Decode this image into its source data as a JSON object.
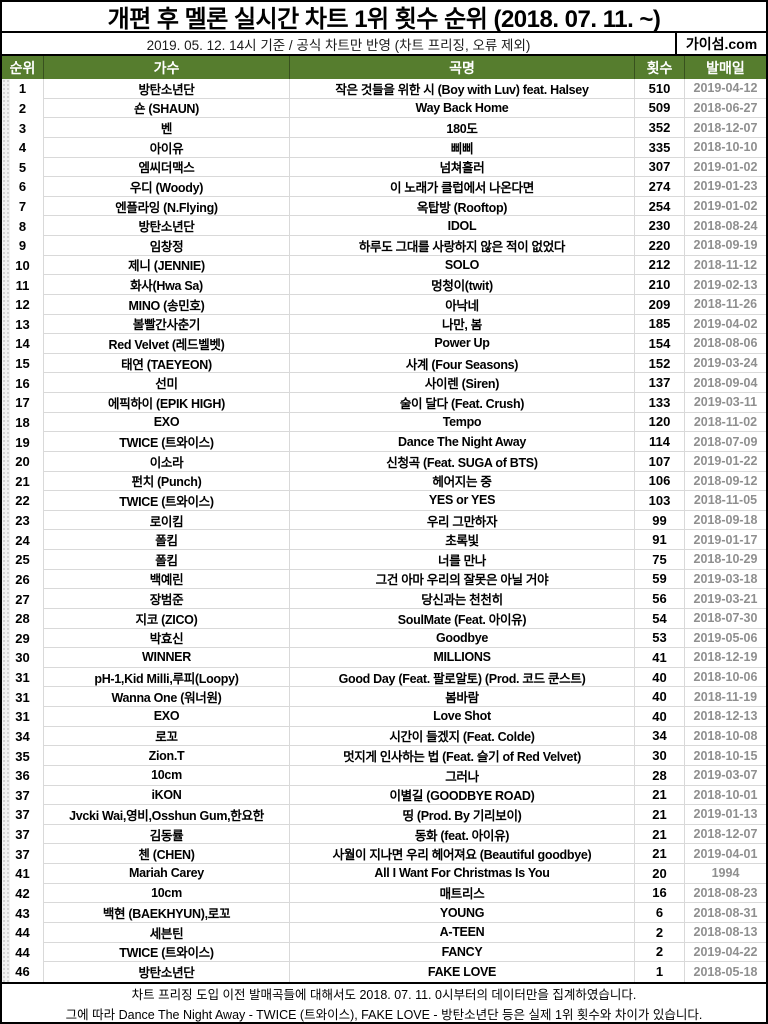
{
  "header": {
    "title": "개편 후 멜론 실시간 차트 1위 횟수 순위 (2018. 07. 11. ~)",
    "subtitle": "2019. 05. 12. 14시 기준 / 공식 차트만 반영 (차트 프리징, 오류 제외)",
    "source_label": "가이섬.com"
  },
  "chart_data": {
    "type": "table",
    "title": "개편 후 멜론 실시간 차트 1위 횟수 순위 (2018. 07. 11. ~)",
    "columns": [
      "순위",
      "가수",
      "곡명",
      "횟수",
      "발매일"
    ],
    "rows": [
      [
        "1",
        "방탄소년단",
        "작은 것들을 위한 시 (Boy with Luv) feat. Halsey",
        "510",
        "2019-04-12"
      ],
      [
        "2",
        "숀 (SHAUN)",
        "Way Back Home",
        "509",
        "2018-06-27"
      ],
      [
        "3",
        "벤",
        "180도",
        "352",
        "2018-12-07"
      ],
      [
        "4",
        "아이유",
        "삐삐",
        "335",
        "2018-10-10"
      ],
      [
        "5",
        "엠씨더맥스",
        "넘쳐흘러",
        "307",
        "2019-01-02"
      ],
      [
        "6",
        "우디 (Woody)",
        "이 노래가 클럽에서 나온다면",
        "274",
        "2019-01-23"
      ],
      [
        "7",
        "엔플라잉 (N.Flying)",
        "옥탑방 (Rooftop)",
        "254",
        "2019-01-02"
      ],
      [
        "8",
        "방탄소년단",
        "IDOL",
        "230",
        "2018-08-24"
      ],
      [
        "9",
        "임창정",
        "하루도 그대를 사랑하지 않은 적이 없었다",
        "220",
        "2018-09-19"
      ],
      [
        "10",
        "제니 (JENNIE)",
        "SOLO",
        "212",
        "2018-11-12"
      ],
      [
        "11",
        "화사(Hwa Sa)",
        "멍청이(twit)",
        "210",
        "2019-02-13"
      ],
      [
        "12",
        "MINO (송민호)",
        "아낙네",
        "209",
        "2018-11-26"
      ],
      [
        "13",
        "볼빨간사춘기",
        "나만, 봄",
        "185",
        "2019-04-02"
      ],
      [
        "14",
        "Red Velvet (레드벨벳)",
        "Power Up",
        "154",
        "2018-08-06"
      ],
      [
        "15",
        "태연 (TAEYEON)",
        "사계 (Four Seasons)",
        "152",
        "2019-03-24"
      ],
      [
        "16",
        "선미",
        "사이렌 (Siren)",
        "137",
        "2018-09-04"
      ],
      [
        "17",
        "에픽하이 (EPIK HIGH)",
        "술이 달다 (Feat. Crush)",
        "133",
        "2019-03-11"
      ],
      [
        "18",
        "EXO",
        "Tempo",
        "120",
        "2018-11-02"
      ],
      [
        "19",
        "TWICE (트와이스)",
        "Dance The Night Away",
        "114",
        "2018-07-09"
      ],
      [
        "20",
        "이소라",
        "신청곡 (Feat. SUGA of BTS)",
        "107",
        "2019-01-22"
      ],
      [
        "21",
        "펀치 (Punch)",
        "헤어지는 중",
        "106",
        "2018-09-12"
      ],
      [
        "22",
        "TWICE (트와이스)",
        "YES or YES",
        "103",
        "2018-11-05"
      ],
      [
        "23",
        "로이킴",
        "우리 그만하자",
        "99",
        "2018-09-18"
      ],
      [
        "24",
        "폴킴",
        "초록빛",
        "91",
        "2019-01-17"
      ],
      [
        "25",
        "폴킴",
        "너를 만나",
        "75",
        "2018-10-29"
      ],
      [
        "26",
        "백예린",
        "그건 아마 우리의 잘못은 아닐 거야",
        "59",
        "2019-03-18"
      ],
      [
        "27",
        "장범준",
        "당신과는 천천히",
        "56",
        "2019-03-21"
      ],
      [
        "28",
        "지코 (ZICO)",
        "SoulMate (Feat. 아이유)",
        "54",
        "2018-07-30"
      ],
      [
        "29",
        "박효신",
        "Goodbye",
        "53",
        "2019-05-06"
      ],
      [
        "30",
        "WINNER",
        "MILLIONS",
        "41",
        "2018-12-19"
      ],
      [
        "31",
        "pH-1,Kid Milli,루피(Loopy)",
        "Good Day (Feat. 팔로알토) (Prod. 코드 쿤스트)",
        "40",
        "2018-10-06"
      ],
      [
        "31",
        "Wanna One (워너원)",
        "봄바람",
        "40",
        "2018-11-19"
      ],
      [
        "31",
        "EXO",
        "Love Shot",
        "40",
        "2018-12-13"
      ],
      [
        "34",
        "로꼬",
        "시간이 들겠지 (Feat. Colde)",
        "34",
        "2018-10-08"
      ],
      [
        "35",
        "Zion.T",
        "멋지게 인사하는 법 (Feat. 슬기 of Red Velvet)",
        "30",
        "2018-10-15"
      ],
      [
        "36",
        "10cm",
        "그러나",
        "28",
        "2019-03-07"
      ],
      [
        "37",
        "iKON",
        "이별길 (GOODBYE ROAD)",
        "21",
        "2018-10-01"
      ],
      [
        "37",
        "Jvcki Wai,영비,Osshun Gum,한요한",
        "띵 (Prod. By 기리보이)",
        "21",
        "2019-01-13"
      ],
      [
        "37",
        "김동률",
        "동화 (feat. 아이유)",
        "21",
        "2018-12-07"
      ],
      [
        "37",
        "첸 (CHEN)",
        "사월이 지나면 우리 헤어져요 (Beautiful goodbye)",
        "21",
        "2019-04-01"
      ],
      [
        "41",
        "Mariah Carey",
        "All I Want For Christmas Is You",
        "20",
        "1994"
      ],
      [
        "42",
        "10cm",
        "매트리스",
        "16",
        "2018-08-23"
      ],
      [
        "43",
        "백현 (BAEKHYUN),로꼬",
        "YOUNG",
        "6",
        "2018-08-31"
      ],
      [
        "44",
        "세븐틴",
        "A-TEEN",
        "2",
        "2018-08-13"
      ],
      [
        "44",
        "TWICE (트와이스)",
        "FANCY",
        "2",
        "2019-04-22"
      ],
      [
        "46",
        "방탄소년단",
        "FAKE LOVE",
        "1",
        "2018-05-18"
      ]
    ]
  },
  "footer": {
    "line1": "차트 프리징 도입 이전 발매곡들에 대해서도 2018. 07. 11. 0시부터의 데이터만을 집계하였습니다.",
    "line2": "그에 따라 Dance The Night Away - TWICE (트와이스), FAKE LOVE - 방탄소년단 등은 실제 1위 횟수와 차이가 있습니다."
  },
  "colors": {
    "header_green": "#567d2e",
    "date_gray": "#8f8f8f",
    "gridline": "#d9d9d9",
    "border_black": "#000000"
  }
}
